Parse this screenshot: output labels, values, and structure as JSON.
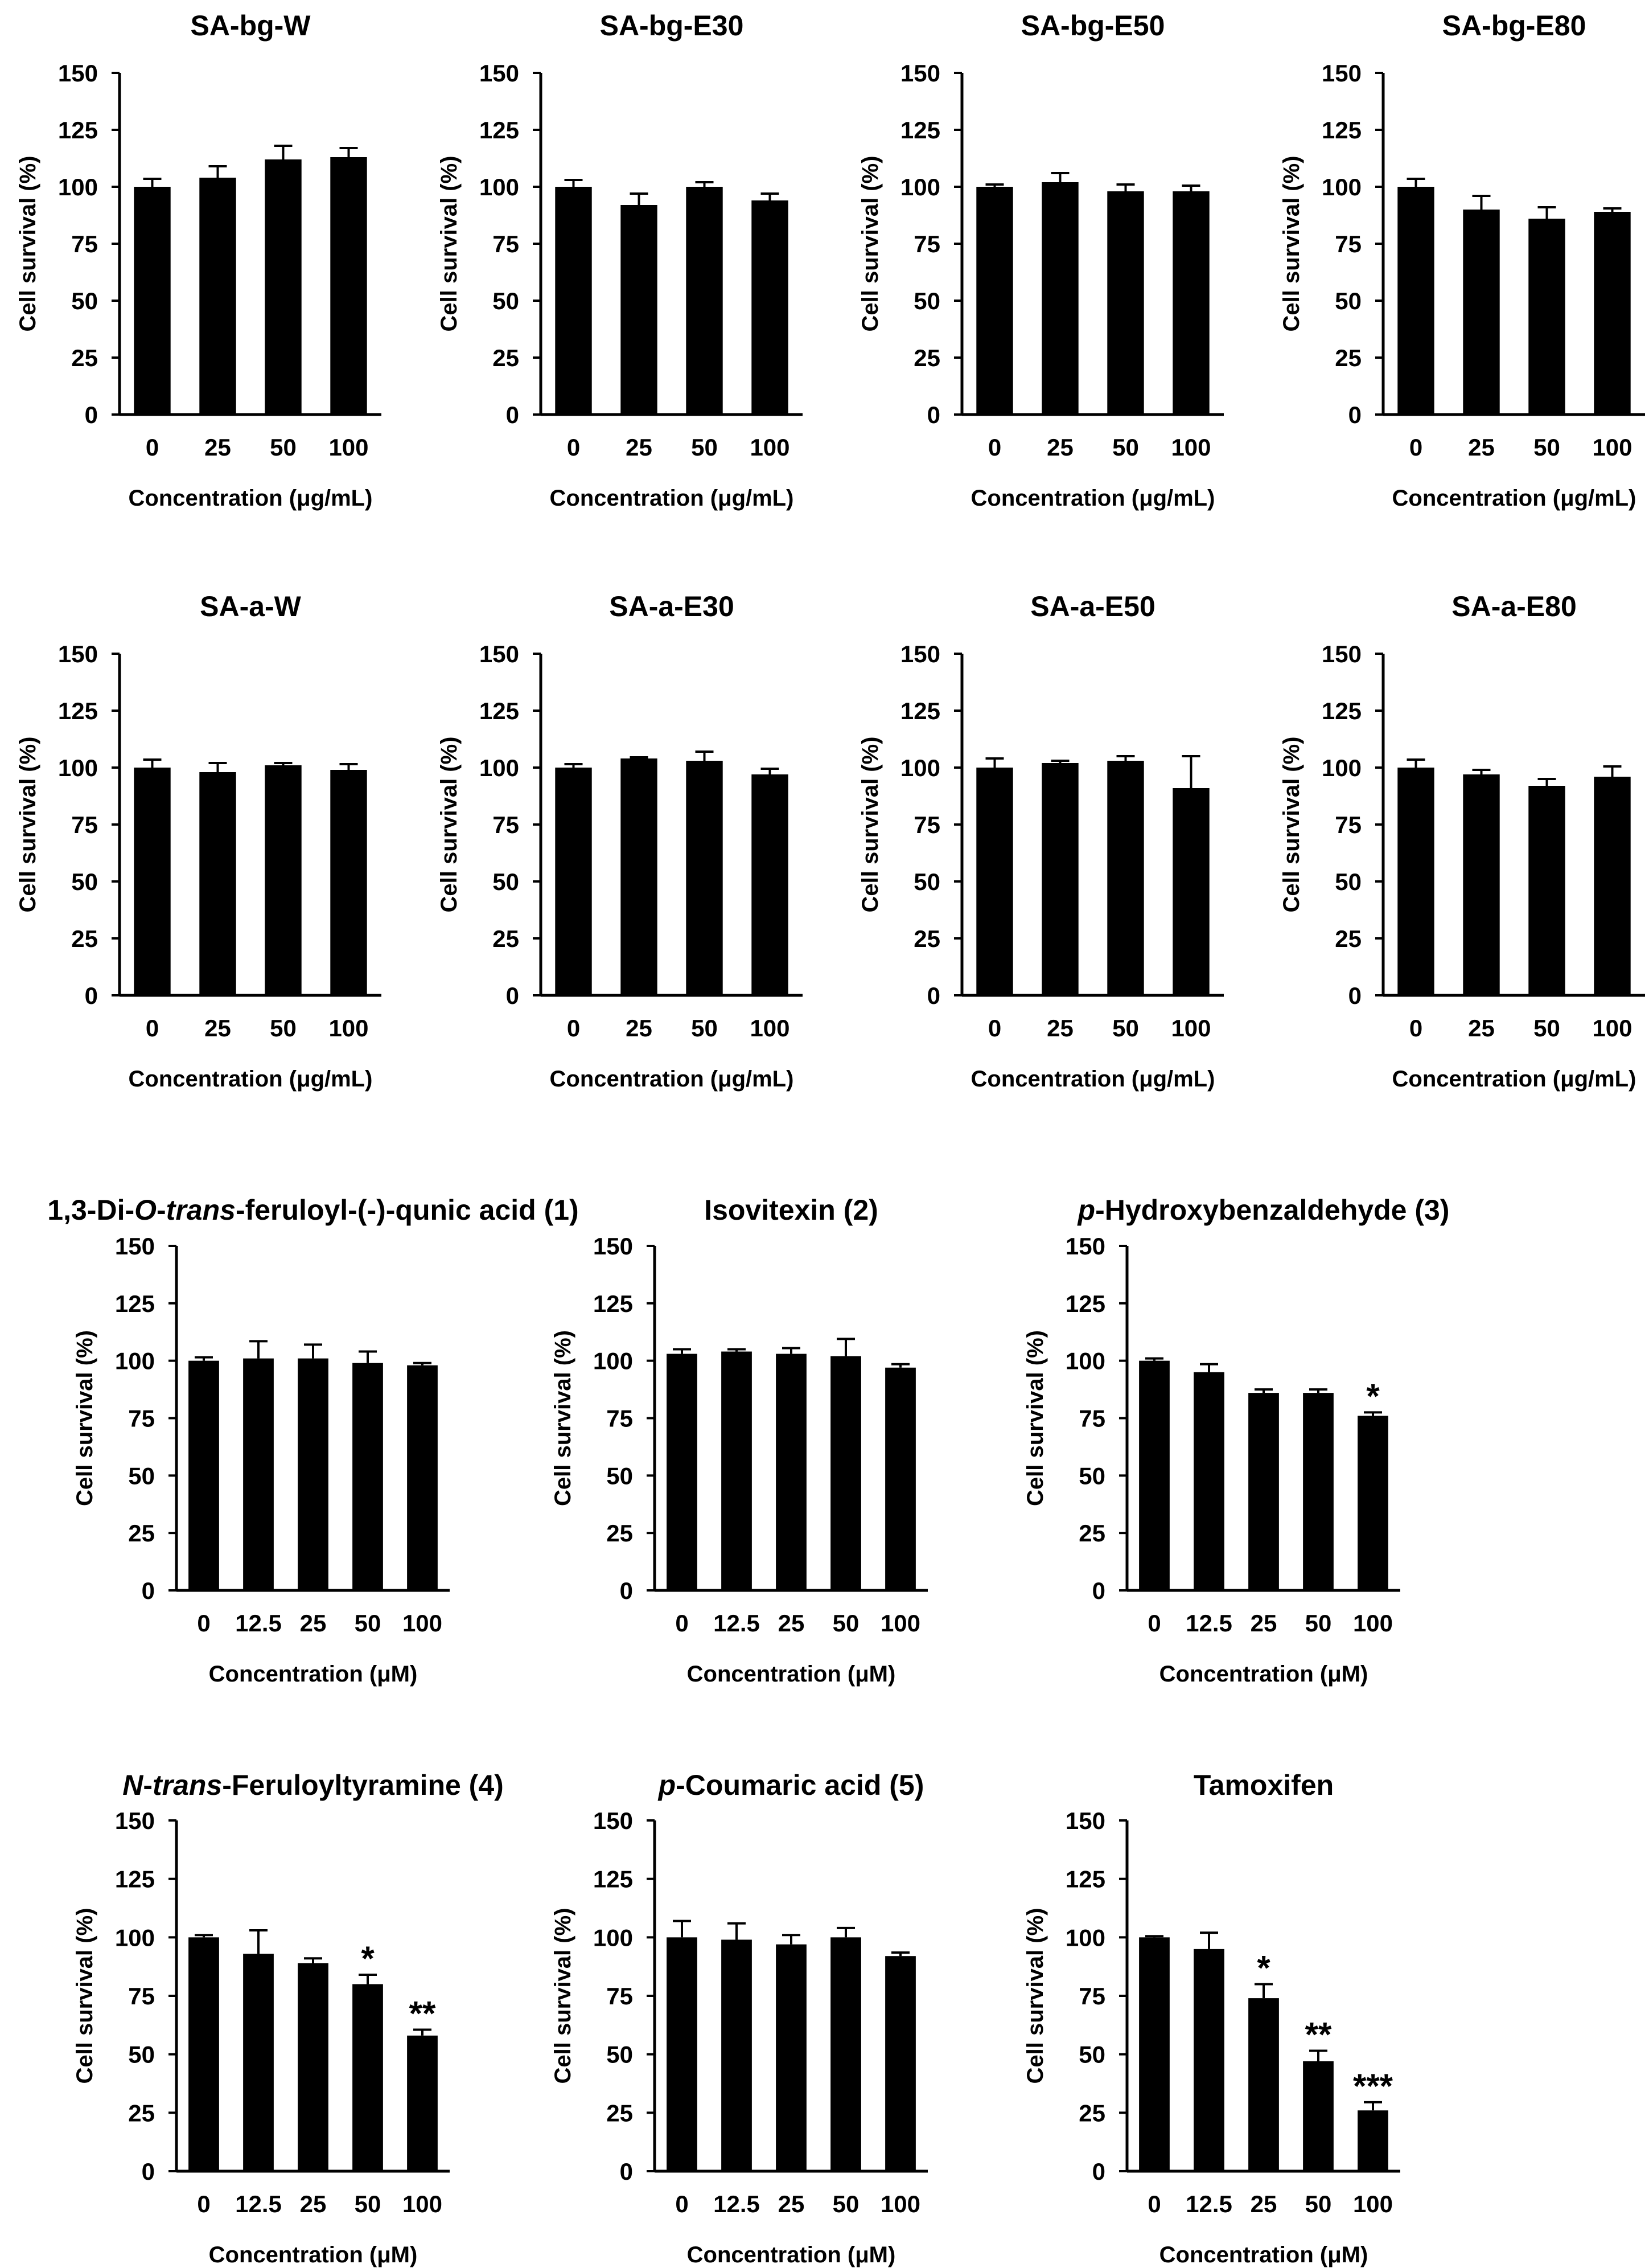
{
  "figure": {
    "ylabel": "Cell survival (%)",
    "xlabel_extract": "Concentration (μg/mL)",
    "xlabel_compound": "Concentration (μM)",
    "y_ticks": [
      "0",
      "25",
      "50",
      "75",
      "100",
      "125",
      "150"
    ],
    "bar_color": "#000000"
  },
  "chart_data": [
    {
      "type": "bar",
      "title": "SA-bg-W",
      "title_parts": [
        {
          "text": "SA-bg-W",
          "italic": false
        }
      ],
      "categories": [
        "0",
        "25",
        "50",
        "100"
      ],
      "values": [
        100,
        104,
        112,
        113
      ],
      "errors": [
        3.5,
        5,
        6,
        4
      ],
      "significance": [
        "",
        "",
        "",
        ""
      ],
      "xlabel": "Concentration (μg/mL)",
      "ylabel": "Cell survival (%)",
      "ylim": [
        0,
        150
      ]
    },
    {
      "type": "bar",
      "title": "SA-bg-E30",
      "title_parts": [
        {
          "text": "SA-bg-E30",
          "italic": false
        }
      ],
      "categories": [
        "0",
        "25",
        "50",
        "100"
      ],
      "values": [
        100,
        92,
        100,
        94
      ],
      "errors": [
        3,
        5,
        2,
        3
      ],
      "significance": [
        "",
        "",
        "",
        ""
      ],
      "xlabel": "Concentration (μg/mL)",
      "ylabel": "Cell survival (%)",
      "ylim": [
        0,
        150
      ]
    },
    {
      "type": "bar",
      "title": "SA-bg-E50",
      "title_parts": [
        {
          "text": "SA-bg-E50",
          "italic": false
        }
      ],
      "categories": [
        "0",
        "25",
        "50",
        "100"
      ],
      "values": [
        100,
        102,
        98,
        98
      ],
      "errors": [
        1,
        4,
        3,
        2.5
      ],
      "significance": [
        "",
        "",
        "",
        ""
      ],
      "xlabel": "Concentration (μg/mL)",
      "ylabel": "Cell survival (%)",
      "ylim": [
        0,
        150
      ]
    },
    {
      "type": "bar",
      "title": "SA-bg-E80",
      "title_parts": [
        {
          "text": "SA-bg-E80",
          "italic": false
        }
      ],
      "categories": [
        "0",
        "25",
        "50",
        "100"
      ],
      "values": [
        100,
        90,
        86,
        89
      ],
      "errors": [
        3.5,
        6,
        5,
        1.5
      ],
      "significance": [
        "",
        "",
        "",
        ""
      ],
      "xlabel": "Concentration (μg/mL)",
      "ylabel": "Cell survival (%)",
      "ylim": [
        0,
        150
      ]
    },
    {
      "type": "bar",
      "title": "SA-a-W",
      "title_parts": [
        {
          "text": "SA-a-W",
          "italic": false
        }
      ],
      "categories": [
        "0",
        "25",
        "50",
        "100"
      ],
      "values": [
        100,
        98,
        101,
        99
      ],
      "errors": [
        3.5,
        4,
        1,
        2.5
      ],
      "significance": [
        "",
        "",
        "",
        ""
      ],
      "xlabel": "Concentration (μg/mL)",
      "ylabel": "Cell survival (%)",
      "ylim": [
        0,
        150
      ]
    },
    {
      "type": "bar",
      "title": "SA-a-E30",
      "title_parts": [
        {
          "text": "SA-a-E30",
          "italic": false
        }
      ],
      "categories": [
        "0",
        "25",
        "50",
        "100"
      ],
      "values": [
        100,
        104,
        103,
        97
      ],
      "errors": [
        1.5,
        0.5,
        4,
        2.5
      ],
      "significance": [
        "",
        "",
        "",
        ""
      ],
      "xlabel": "Concentration (μg/mL)",
      "ylabel": "Cell survival (%)",
      "ylim": [
        0,
        150
      ]
    },
    {
      "type": "bar",
      "title": "SA-a-E50",
      "title_parts": [
        {
          "text": "SA-a-E50",
          "italic": false
        }
      ],
      "categories": [
        "0",
        "25",
        "50",
        "100"
      ],
      "values": [
        100,
        102,
        103,
        91
      ],
      "errors": [
        4,
        1,
        2,
        14
      ],
      "significance": [
        "",
        "",
        "",
        ""
      ],
      "xlabel": "Concentration (μg/mL)",
      "ylabel": "Cell survival (%)",
      "ylim": [
        0,
        150
      ]
    },
    {
      "type": "bar",
      "title": "SA-a-E80",
      "title_parts": [
        {
          "text": "SA-a-E80",
          "italic": false
        }
      ],
      "categories": [
        "0",
        "25",
        "50",
        "100"
      ],
      "values": [
        100,
        97,
        92,
        96
      ],
      "errors": [
        3.5,
        2,
        3,
        4.5
      ],
      "significance": [
        "",
        "",
        "",
        ""
      ],
      "xlabel": "Concentration (μg/mL)",
      "ylabel": "Cell survival (%)",
      "ylim": [
        0,
        150
      ]
    },
    {
      "type": "bar",
      "title": "1,3-Di-O-trans-feruloyl-(-)-qunic acid (1)",
      "title_parts": [
        {
          "text": "1,3-Di-",
          "italic": false
        },
        {
          "text": "O",
          "italic": true
        },
        {
          "text": "-",
          "italic": false
        },
        {
          "text": "trans",
          "italic": true
        },
        {
          "text": "-feruloyl-(-)-qunic acid (1)",
          "italic": false
        }
      ],
      "categories": [
        "0",
        "12.5",
        "25",
        "50",
        "100"
      ],
      "values": [
        100,
        101,
        101,
        99,
        98
      ],
      "errors": [
        1.5,
        7.5,
        6,
        5,
        1
      ],
      "significance": [
        "",
        "",
        "",
        "",
        ""
      ],
      "xlabel": "Concentration (μM)",
      "ylabel": "Cell survival (%)",
      "ylim": [
        0,
        150
      ]
    },
    {
      "type": "bar",
      "title": "Isovitexin (2)",
      "title_parts": [
        {
          "text": "Isovitexin (2)",
          "italic": false
        }
      ],
      "categories": [
        "0",
        "12.5",
        "25",
        "50",
        "100"
      ],
      "values": [
        103,
        104,
        103,
        102,
        97
      ],
      "errors": [
        2,
        1,
        2.5,
        7.5,
        1.5
      ],
      "significance": [
        "",
        "",
        "",
        "",
        ""
      ],
      "xlabel": "Concentration (μM)",
      "ylabel": "Cell survival (%)",
      "ylim": [
        0,
        150
      ]
    },
    {
      "type": "bar",
      "title": "p-Hydroxybenzaldehyde (3)",
      "title_parts": [
        {
          "text": "p",
          "italic": true
        },
        {
          "text": "-Hydroxybenzaldehyde  (3)",
          "italic": false
        }
      ],
      "categories": [
        "0",
        "12.5",
        "25",
        "50",
        "100"
      ],
      "values": [
        100,
        95,
        86,
        86,
        76
      ],
      "errors": [
        1,
        3.5,
        1.5,
        1.5,
        1.5
      ],
      "significance": [
        "",
        "",
        "",
        "",
        "*"
      ],
      "xlabel": "Concentration (μM)",
      "ylabel": "Cell survival (%)",
      "ylim": [
        0,
        150
      ]
    },
    {
      "type": "bar",
      "title": "N-trans-Feruloyltyramine (4)",
      "title_parts": [
        {
          "text": "N",
          "italic": true
        },
        {
          "text": "-",
          "italic": false
        },
        {
          "text": "trans",
          "italic": true
        },
        {
          "text": "-Feruloyltyramine (4)",
          "italic": false
        }
      ],
      "categories": [
        "0",
        "12.5",
        "25",
        "50",
        "100"
      ],
      "values": [
        100,
        93,
        89,
        80,
        58
      ],
      "errors": [
        1,
        10,
        2,
        4,
        2.5
      ],
      "significance": [
        "",
        "",
        "",
        "*",
        "**"
      ],
      "xlabel": "Concentration (μM)",
      "ylabel": "Cell survival (%)",
      "ylim": [
        0,
        150
      ]
    },
    {
      "type": "bar",
      "title": "p-Coumaric acid (5)",
      "title_parts": [
        {
          "text": "p",
          "italic": true
        },
        {
          "text": "-Coumaric acid (5)",
          "italic": false
        }
      ],
      "categories": [
        "0",
        "12.5",
        "25",
        "50",
        "100"
      ],
      "values": [
        100,
        99,
        97,
        100,
        92
      ],
      "errors": [
        7,
        7,
        4,
        4,
        1.5
      ],
      "significance": [
        "",
        "",
        "",
        "",
        ""
      ],
      "xlabel": "Concentration (μM)",
      "ylabel": "Cell survival (%)",
      "ylim": [
        0,
        150
      ]
    },
    {
      "type": "bar",
      "title": "Tamoxifen",
      "title_parts": [
        {
          "text": "Tamoxifen",
          "italic": false
        }
      ],
      "categories": [
        "0",
        "12.5",
        "25",
        "50",
        "100"
      ],
      "values": [
        100,
        95,
        74,
        47,
        26
      ],
      "errors": [
        0.5,
        7,
        6,
        4.5,
        3.5
      ],
      "significance": [
        "",
        "",
        "*",
        "**",
        "***"
      ],
      "xlabel": "Concentration (μM)",
      "ylabel": "Cell survival (%)",
      "ylim": [
        0,
        150
      ]
    }
  ]
}
